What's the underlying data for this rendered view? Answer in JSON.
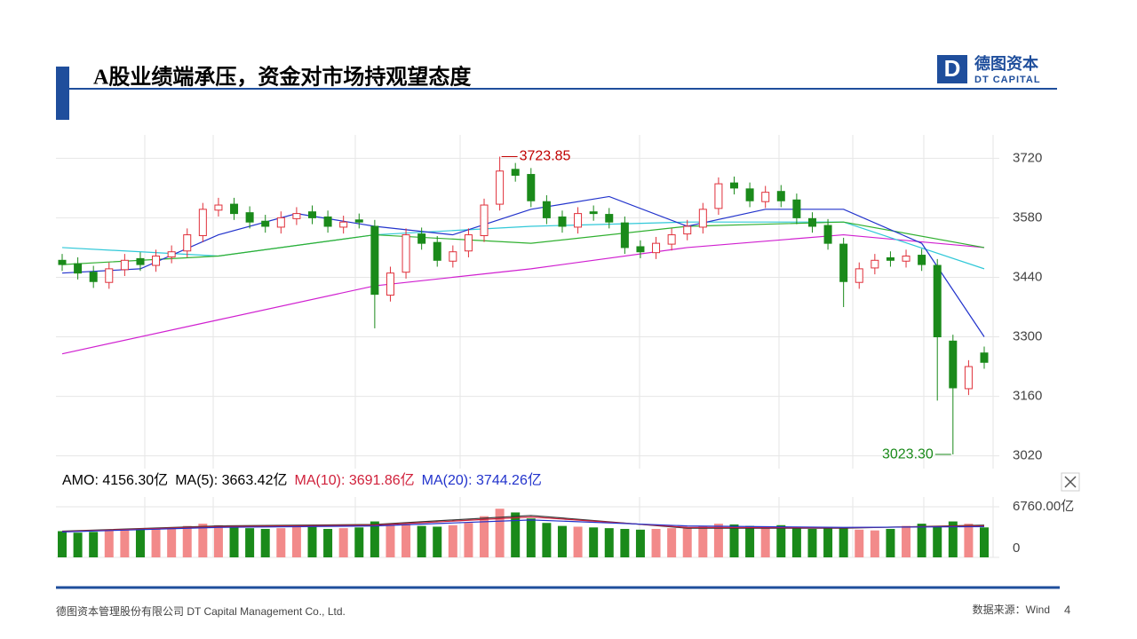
{
  "header": {
    "title": "A股业绩端承压，资金对市场持观望态度",
    "logo_cn": "德图资本",
    "logo_en": "DT CAPITAL"
  },
  "footer": {
    "company": "德图资本管理股份有限公司  DT Capital Management  Co., Ltd.",
    "source": "数据来源：Wind",
    "page": "4"
  },
  "chart_data": [
    {
      "type": "candlestick",
      "open": [
        3480,
        3472,
        3452,
        3428,
        3458,
        3484,
        3468,
        3488,
        3502,
        3538,
        3598,
        3612,
        3592,
        3572,
        3558,
        3578,
        3594,
        3582,
        3558,
        3575,
        3560,
        3398,
        3452,
        3542,
        3522,
        3478,
        3502,
        3538,
        3612,
        3694,
        3682,
        3618,
        3582,
        3558,
        3594,
        3588,
        3568,
        3512,
        3498,
        3518,
        3542,
        3558,
        3602,
        3662,
        3648,
        3618,
        3642,
        3622,
        3578,
        3562,
        3518,
        3428,
        3462,
        3486,
        3478,
        3492,
        3468,
        3290,
        3178,
        3262
      ],
      "high": [
        3495,
        3487,
        3467,
        3475,
        3495,
        3499,
        3505,
        3515,
        3555,
        3615,
        3627,
        3627,
        3607,
        3587,
        3595,
        3605,
        3609,
        3597,
        3585,
        3590,
        3575,
        3465,
        3555,
        3557,
        3537,
        3515,
        3555,
        3625,
        3723.85,
        3709,
        3697,
        3633,
        3597,
        3605,
        3609,
        3603,
        3583,
        3527,
        3535,
        3555,
        3575,
        3615,
        3675,
        3677,
        3663,
        3655,
        3657,
        3637,
        3593,
        3577,
        3533,
        3475,
        3495,
        3501,
        3505,
        3507,
        3483,
        3305,
        3245,
        3277
      ],
      "low": [
        3455,
        3435,
        3415,
        3413,
        3443,
        3455,
        3453,
        3473,
        3487,
        3523,
        3583,
        3575,
        3555,
        3545,
        3543,
        3563,
        3565,
        3545,
        3543,
        3555,
        3320,
        3383,
        3437,
        3505,
        3465,
        3463,
        3487,
        3523,
        3597,
        3665,
        3605,
        3565,
        3545,
        3543,
        3573,
        3555,
        3495,
        3485,
        3483,
        3503,
        3527,
        3543,
        3587,
        3635,
        3605,
        3603,
        3605,
        3565,
        3545,
        3505,
        3370,
        3413,
        3447,
        3465,
        3463,
        3455,
        3150,
        3023.3,
        3163,
        3225
      ],
      "close": [
        3470,
        3450,
        3430,
        3460,
        3480,
        3470,
        3490,
        3500,
        3540,
        3600,
        3610,
        3590,
        3570,
        3560,
        3580,
        3590,
        3580,
        3560,
        3570,
        3570,
        3400,
        3450,
        3540,
        3520,
        3480,
        3500,
        3540,
        3610,
        3690,
        3680,
        3620,
        3580,
        3560,
        3590,
        3590,
        3570,
        3510,
        3500,
        3520,
        3540,
        3560,
        3600,
        3660,
        3650,
        3620,
        3640,
        3620,
        3580,
        3560,
        3520,
        3430,
        3460,
        3480,
        3480,
        3490,
        3470,
        3300,
        3180,
        3230,
        3240
      ],
      "up_color": "#e0303a",
      "down_color": "#1a8a1a",
      "lines": [
        {
          "color": "#d020d0",
          "x": [
            0,
            10,
            20,
            30,
            40,
            50,
            59
          ],
          "values": [
            3260,
            3340,
            3420,
            3460,
            3510,
            3540,
            3510
          ]
        },
        {
          "color": "#30c8d8",
          "x": [
            0,
            10,
            20,
            30,
            40,
            50,
            59
          ],
          "values": [
            3510,
            3490,
            3540,
            3560,
            3570,
            3570,
            3460
          ]
        },
        {
          "color": "#30b030",
          "x": [
            0,
            10,
            20,
            30,
            40,
            50,
            59
          ],
          "values": [
            3470,
            3490,
            3540,
            3520,
            3560,
            3570,
            3510
          ]
        },
        {
          "color": "#2233cc",
          "x": [
            0,
            5,
            10,
            15,
            20,
            25,
            30,
            35,
            40,
            45,
            50,
            55,
            59
          ],
          "values": [
            3450,
            3460,
            3540,
            3590,
            3560,
            3540,
            3600,
            3630,
            3560,
            3600,
            3600,
            3520,
            3300
          ]
        }
      ],
      "annotations": [
        {
          "value": 3723.85,
          "label": "3723.85",
          "color": "#c00000"
        },
        {
          "value": 3023.3,
          "label": "3023.30",
          "color": "#1a8a1a"
        }
      ],
      "ylim": [
        2990,
        3775
      ],
      "yticks": [
        3020,
        3160,
        3300,
        3440,
        3580,
        3720
      ]
    },
    {
      "type": "volume",
      "legend": [
        {
          "text": "AMO: 4156.30亿",
          "color": "#000000"
        },
        {
          "text": "MA(5): 3663.42亿",
          "color": "#000000"
        },
        {
          "text": "MA(10): 3691.86亿",
          "color": "#d0213b"
        },
        {
          "text": "MA(20): 3744.26亿",
          "color": "#2233cc"
        }
      ],
      "values": [
        3500,
        3300,
        3400,
        3600,
        3800,
        3700,
        3900,
        3800,
        4200,
        4500,
        4300,
        4100,
        3900,
        3800,
        3900,
        4300,
        4100,
        3800,
        3900,
        4000,
        4800,
        4500,
        4400,
        4200,
        4100,
        4300,
        4600,
        5500,
        6500,
        6000,
        5200,
        4600,
        4200,
        4100,
        4000,
        3900,
        3800,
        3700,
        3800,
        3900,
        4000,
        4200,
        4500,
        4400,
        4200,
        4100,
        4300,
        4000,
        3800,
        3900,
        4000,
        3700,
        3600,
        3800,
        4200,
        4500,
        4100,
        4800,
        4500,
        4000
      ],
      "lines": [
        {
          "color": "#333333",
          "x": [
            0,
            10,
            20,
            30,
            40,
            50,
            59
          ],
          "values": [
            3500,
            4200,
            4400,
            5600,
            3900,
            3900,
            4300
          ]
        },
        {
          "color": "#d0213b",
          "x": [
            0,
            10,
            20,
            30,
            40,
            50,
            59
          ],
          "values": [
            3450,
            4100,
            4300,
            5400,
            4000,
            3950,
            4200
          ]
        },
        {
          "color": "#2233cc",
          "x": [
            0,
            10,
            20,
            30,
            40,
            50,
            59
          ],
          "values": [
            3400,
            4000,
            4200,
            5000,
            4200,
            4000,
            4100
          ]
        }
      ],
      "ylim": [
        0,
        7000
      ],
      "yticks": [
        {
          "value": 6760,
          "label": "6760.00亿"
        },
        0
      ]
    }
  ]
}
